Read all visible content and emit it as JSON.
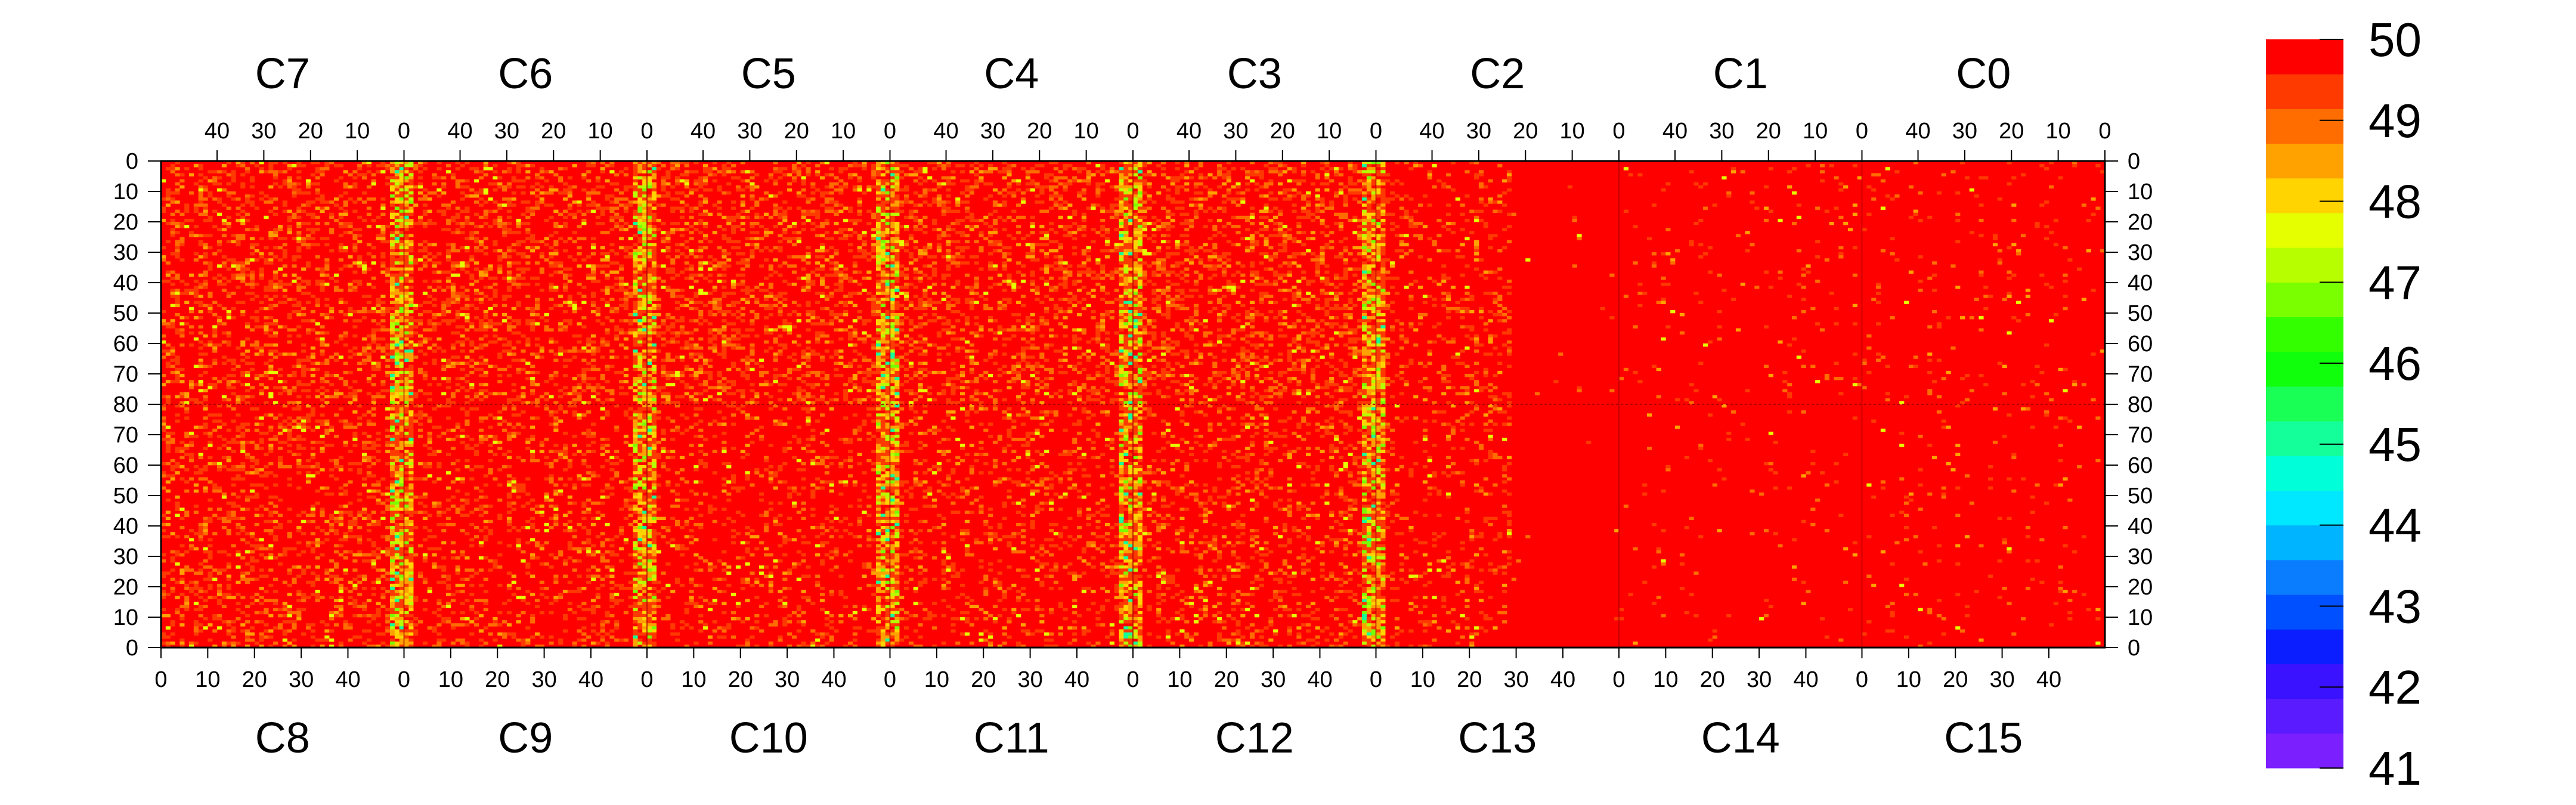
{
  "chart_data": {
    "type": "heatmap",
    "title": "",
    "xlabel": "",
    "ylabel": "",
    "chips_top": [
      "C7",
      "C6",
      "C5",
      "C4",
      "C3",
      "C2",
      "C1",
      "C0"
    ],
    "chips_bottom": [
      "C8",
      "C9",
      "C10",
      "C11",
      "C12",
      "C13",
      "C14",
      "C15"
    ],
    "x_tick_labels_top": [
      "40",
      "30",
      "20",
      "10",
      "0"
    ],
    "x_tick_labels_bottom": [
      "0",
      "10",
      "20",
      "30",
      "40"
    ],
    "y_tick_labels": [
      "0",
      "10",
      "20",
      "30",
      "40",
      "50",
      "60",
      "70",
      "80",
      "70",
      "60",
      "50",
      "40",
      "30",
      "20",
      "10",
      "0"
    ],
    "colorbar_labels": [
      "50",
      "49",
      "48",
      "47",
      "46",
      "45",
      "44",
      "43",
      "42",
      "41"
    ],
    "zlim": [
      41,
      50
    ],
    "columns_per_chip": 52,
    "rows_per_chip": 80,
    "palette": [
      "#7b1fff",
      "#5a1cff",
      "#3a12ff",
      "#0b1eff",
      "#0050ff",
      "#0a7dff",
      "#00b4ff",
      "#00e8ff",
      "#00ffd9",
      "#14ff9a",
      "#1aff55",
      "#10ff0c",
      "#33ff00",
      "#7aff00",
      "#b7ff00",
      "#e5ff00",
      "#ffd400",
      "#ffa200",
      "#ff6d00",
      "#ff3a00",
      "#ff0000"
    ],
    "bad_column_chips_top": [
      "C7",
      "C6",
      "C5",
      "C4",
      "C3"
    ],
    "clean_region": "C2 right half, C1, C0, C13 right half, C14, C15",
    "grid": false
  }
}
